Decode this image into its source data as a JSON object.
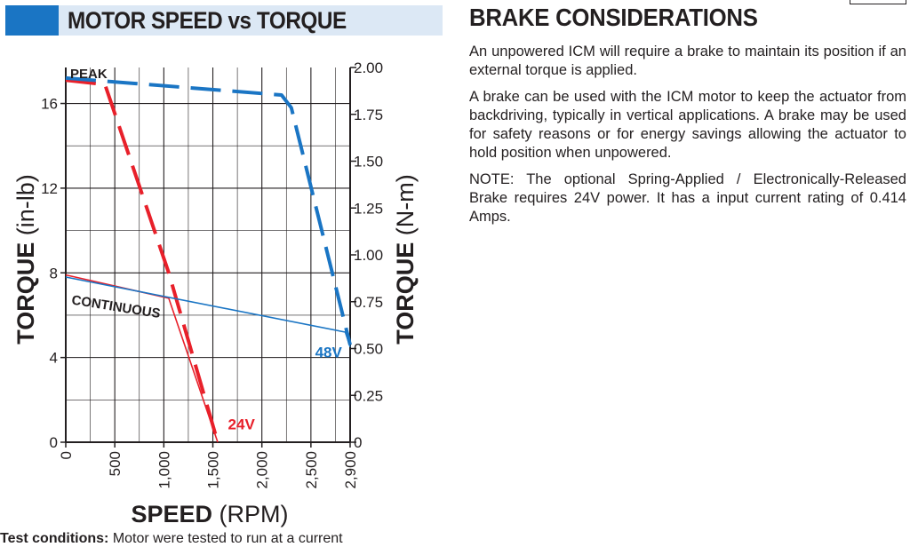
{
  "left_header": {
    "title": "MOTOR SPEED vs TORQUE"
  },
  "right_section": {
    "title": "BRAKE CONSIDERATIONS",
    "paragraphs": [
      "An unpowered ICM will require a brake to maintain its position if an external torque is applied.",
      "A brake can be used with the ICM motor to keep the actuator from backdriving, typically in vertical applications. A brake may be used for safety reasons or for energy savings allowing the actuator to hold position when unpowered.",
      "NOTE: The optional Spring-Applied / Electronically-Released Brake requires 24V power. It has a input current rating of 0.414 Amps."
    ]
  },
  "footnote": {
    "label": "Test conditions:",
    "text": "Motor were tested to run at a current"
  },
  "chart_data": {
    "type": "line",
    "xlabel_bold": "SPEED",
    "xlabel_unit": "(RPM)",
    "ylabel_left_bold": "TORQUE",
    "ylabel_left_unit": "(in-lb)",
    "ylabel_right_bold": "TORQUE",
    "ylabel_right_unit": "(N-m)",
    "xlim": [
      0,
      2900
    ],
    "ylim_left": [
      0,
      17.7
    ],
    "ylim_right": [
      0,
      2.0
    ],
    "x_ticks": [
      0,
      500,
      1000,
      1500,
      2000,
      2500,
      2900
    ],
    "x_tick_labels": [
      "0",
      "500",
      "1,000",
      "1,500",
      "2,000",
      "2,500",
      "2,900"
    ],
    "y_left_ticks": [
      0,
      4,
      8,
      12,
      16
    ],
    "y_left_tick_labels": [
      "0",
      "4",
      "8",
      "12",
      "16"
    ],
    "y_right_ticks": [
      0,
      0.25,
      0.5,
      0.75,
      1.0,
      1.25,
      1.5,
      1.75,
      2.0
    ],
    "y_right_tick_labels": [
      "0",
      "0.25",
      "0.50",
      "0.75",
      "1.00",
      "1.25",
      "1.50",
      "1.75",
      "2.00"
    ],
    "grid": true,
    "annotations": {
      "peak": "PEAK",
      "continuous": "CONTINUOUS"
    },
    "series": [
      {
        "name": "24V",
        "color": "#e8202a",
        "curve": "peak",
        "x": [
          0,
          400,
          1050,
          1550
        ],
        "y": [
          17.1,
          16.9,
          8.0,
          0
        ]
      },
      {
        "name": "24V",
        "color": "#e8202a",
        "curve": "continuous",
        "x": [
          0,
          1050,
          1550
        ],
        "y": [
          7.9,
          6.8,
          0
        ]
      },
      {
        "name": "48V",
        "color": "#1a75c4",
        "curve": "peak",
        "x": [
          0,
          2200,
          2300,
          2900
        ],
        "y": [
          17.2,
          16.4,
          15.8,
          4.6
        ]
      },
      {
        "name": "48V",
        "color": "#1a75c4",
        "curve": "continuous",
        "x": [
          0,
          2850,
          2900
        ],
        "y": [
          7.8,
          5.2,
          4.5
        ]
      }
    ]
  }
}
